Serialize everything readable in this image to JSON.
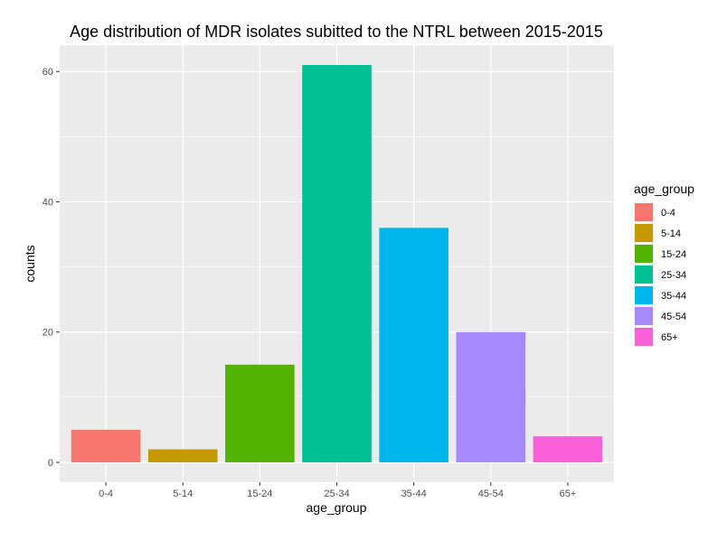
{
  "chart_data": {
    "type": "bar",
    "title": "Age distribution of MDR isolates subitted to the NTRL between 2015-2015",
    "xlabel": "age_group",
    "ylabel": "counts",
    "categories": [
      "0-4",
      "5-14",
      "15-24",
      "25-34",
      "35-44",
      "45-54",
      "65+"
    ],
    "values": [
      5,
      2,
      15,
      61,
      36,
      20,
      4
    ],
    "colors": [
      "#F8766D",
      "#C49A00",
      "#53B400",
      "#00C094",
      "#00B6EB",
      "#A58AFF",
      "#FB61D7"
    ],
    "yticks": [
      0,
      20,
      40,
      60
    ],
    "ylim": [
      -3.05,
      64.05
    ],
    "grid": true,
    "legend": {
      "title": "age_group",
      "position": "right",
      "entries": [
        "0-4",
        "5-14",
        "15-24",
        "25-34",
        "35-44",
        "45-54",
        "65+"
      ]
    }
  }
}
